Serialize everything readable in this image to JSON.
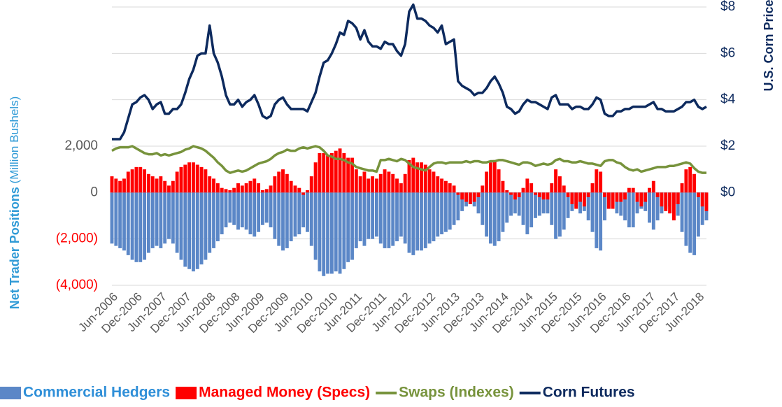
{
  "chart_data": {
    "type": "bar-line",
    "y_label": {
      "main": "Net Trader Positions",
      "sub": "(Million Bushels)"
    },
    "y2_label": "U.S. Corn Price",
    "categories": [
      "Jun-2006",
      null,
      null,
      null,
      null,
      null,
      "Dec-2006",
      null,
      null,
      null,
      null,
      null,
      "Jun-2007",
      null,
      null,
      null,
      null,
      null,
      "Dec-2007",
      null,
      null,
      null,
      null,
      null,
      "Jun-2008",
      null,
      null,
      null,
      null,
      null,
      "Dec-2008",
      null,
      null,
      null,
      null,
      null,
      "Jun-2009",
      null,
      null,
      null,
      null,
      null,
      "Dec-2009",
      null,
      null,
      null,
      null,
      null,
      "Jun-2010",
      null,
      null,
      null,
      null,
      null,
      "Dec-2010",
      null,
      null,
      null,
      null,
      null,
      "Jun-2011",
      null,
      null,
      null,
      null,
      null,
      "Dec-2011",
      null,
      null,
      null,
      null,
      null,
      "Jun-2012",
      null,
      null,
      null,
      null,
      null,
      "Dec-2012",
      null,
      null,
      null,
      null,
      null,
      "Jun-2013",
      null,
      null,
      null,
      null,
      null,
      "Dec-2013",
      null,
      null,
      null,
      null,
      null,
      "Jun-2014",
      null,
      null,
      null,
      null,
      null,
      "Dec-2014",
      null,
      null,
      null,
      null,
      null,
      "Jun-2015",
      null,
      null,
      null,
      null,
      null,
      "Dec-2015",
      null,
      null,
      null,
      null,
      null,
      "Jun-2016",
      null,
      null,
      null,
      null,
      null,
      "Dec-2016",
      null,
      null,
      null,
      null,
      null,
      "Jun-2017",
      null,
      null,
      null,
      null,
      null,
      "Dec-2017",
      null,
      null,
      null,
      null,
      null,
      "Jun-2018",
      null,
      null
    ],
    "series": [
      {
        "name": "Commercial Hedgers",
        "kind": "bar",
        "color": "#5b87c7",
        "legend_color": "#2f8fd8",
        "values": [
          -2200,
          -2300,
          -2400,
          -2500,
          -2700,
          -2900,
          -3000,
          -3000,
          -2900,
          -2600,
          -2400,
          -2300,
          -2400,
          -2200,
          -2000,
          -2200,
          -2600,
          -2900,
          -3200,
          -3300,
          -3400,
          -3300,
          -3100,
          -2900,
          -2600,
          -2400,
          -2100,
          -1800,
          -1500,
          -1300,
          -1400,
          -1600,
          -1500,
          -1600,
          -1800,
          -1900,
          -1700,
          -1400,
          -1300,
          -1500,
          -2000,
          -2300,
          -2500,
          -2400,
          -2100,
          -1900,
          -1800,
          -1500,
          -1700,
          -2300,
          -2900,
          -3400,
          -3600,
          -3500,
          -3500,
          -3400,
          -3500,
          -3300,
          -3000,
          -2900,
          -2400,
          -2100,
          -2300,
          -2000,
          -2000,
          -1900,
          -2200,
          -2400,
          -2400,
          -2300,
          -2100,
          -1900,
          -2200,
          -2600,
          -2700,
          -2500,
          -2500,
          -2400,
          -2200,
          -2100,
          -1900,
          -1800,
          -1700,
          -1600,
          -1400,
          -1200,
          -800,
          -600,
          -500,
          -600,
          -900,
          -1400,
          -1900,
          -2200,
          -2300,
          -2100,
          -1700,
          -1300,
          -1000,
          -900,
          -1000,
          -1400,
          -1800,
          -1500,
          -1100,
          -1000,
          -900,
          -900,
          -1400,
          -2000,
          -1900,
          -1600,
          -1100,
          -800,
          -600,
          -900,
          -800,
          -1200,
          -1700,
          -2400,
          -2500,
          -1200,
          -700,
          -600,
          -900,
          -1000,
          -1200,
          -1500,
          -1500,
          -900,
          -700,
          -800,
          -1300,
          -1600,
          -1200,
          -900,
          -700,
          -600,
          -500,
          -1000,
          -1700,
          -2300,
          -2600,
          -2700,
          -1900,
          -1400,
          -1200
        ]
      },
      {
        "name": "Managed Money (Specs)",
        "kind": "bar",
        "color": "#ff0000",
        "legend_color": "#ff0000",
        "values": [
          700,
          600,
          500,
          600,
          900,
          1000,
          1100,
          1100,
          1000,
          800,
          700,
          600,
          700,
          500,
          300,
          500,
          900,
          1100,
          1200,
          1300,
          1300,
          1200,
          1100,
          1000,
          700,
          600,
          400,
          200,
          150,
          100,
          200,
          400,
          300,
          400,
          500,
          600,
          400,
          100,
          150,
          300,
          700,
          900,
          1000,
          800,
          500,
          300,
          200,
          -100,
          100,
          700,
          1300,
          1700,
          1700,
          1600,
          1700,
          1800,
          1900,
          1700,
          1500,
          1500,
          1000,
          700,
          900,
          600,
          700,
          600,
          800,
          1000,
          900,
          800,
          600,
          400,
          800,
          1400,
          1500,
          1300,
          1300,
          1200,
          1000,
          900,
          700,
          600,
          500,
          400,
          300,
          -100,
          -300,
          -400,
          -500,
          -400,
          -200,
          300,
          900,
          1300,
          1400,
          1000,
          500,
          100,
          -100,
          -300,
          -200,
          200,
          600,
          400,
          -100,
          -200,
          -300,
          -300,
          400,
          1000,
          700,
          300,
          -200,
          -500,
          -700,
          -400,
          -600,
          -200,
          400,
          1000,
          900,
          -200,
          -700,
          -700,
          -400,
          -400,
          -300,
          200,
          200,
          -400,
          -600,
          -400,
          200,
          500,
          -200,
          -600,
          -800,
          -900,
          -1200,
          -500,
          400,
          1000,
          1100,
          800,
          -200,
          -600,
          -800
        ]
      },
      {
        "name": "Swaps (Indexes)",
        "kind": "line",
        "color": "#77933c",
        "legend_color": "#77933c",
        "values": [
          1800,
          1900,
          1950,
          1950,
          1950,
          2000,
          1900,
          1800,
          1700,
          1650,
          1650,
          1700,
          1600,
          1650,
          1600,
          1650,
          1700,
          1750,
          1850,
          1900,
          2000,
          1950,
          1900,
          1800,
          1650,
          1500,
          1300,
          1150,
          950,
          850,
          900,
          950,
          900,
          950,
          1050,
          1150,
          1250,
          1300,
          1350,
          1450,
          1600,
          1700,
          1750,
          1850,
          1800,
          1800,
          1900,
          1950,
          1900,
          1950,
          2000,
          1950,
          1800,
          1600,
          1550,
          1450,
          1450,
          1400,
          1300,
          1250,
          1100,
          1050,
          1000,
          950,
          950,
          900,
          1400,
          1400,
          1450,
          1400,
          1350,
          1450,
          1400,
          1250,
          1100,
          1050,
          1000,
          950,
          1100,
          1250,
          1300,
          1300,
          1250,
          1300,
          1300,
          1300,
          1300,
          1350,
          1300,
          1350,
          1350,
          1300,
          1300,
          1350,
          1350,
          1400,
          1400,
          1350,
          1300,
          1250,
          1200,
          1300,
          1300,
          1250,
          1150,
          1200,
          1250,
          1200,
          1250,
          1400,
          1450,
          1350,
          1350,
          1300,
          1300,
          1350,
          1300,
          1250,
          1250,
          1200,
          1150,
          1350,
          1400,
          1400,
          1300,
          1250,
          1100,
          1000,
          950,
          1000,
          900,
          950,
          1000,
          1050,
          1100,
          1100,
          1100,
          1150,
          1150,
          1200,
          1250,
          1300,
          1250,
          1050,
          900,
          850,
          850
        ]
      },
      {
        "name": "Corn Futures",
        "kind": "line",
        "axis": "y2",
        "color": "#0d2a5e",
        "legend_color": "#0d2a5e",
        "values": [
          2.3,
          2.3,
          2.3,
          2.6,
          3.2,
          3.8,
          3.9,
          4.1,
          4.2,
          4.0,
          3.6,
          3.8,
          3.9,
          3.4,
          3.4,
          3.6,
          3.6,
          3.8,
          4.3,
          4.9,
          5.3,
          5.9,
          6.0,
          6.0,
          7.2,
          6.0,
          5.6,
          5.0,
          4.2,
          3.8,
          3.8,
          4.0,
          3.7,
          3.9,
          4.0,
          4.2,
          3.8,
          3.3,
          3.2,
          3.3,
          3.8,
          4.0,
          4.1,
          3.8,
          3.6,
          3.6,
          3.6,
          3.6,
          3.5,
          3.9,
          4.3,
          5.0,
          5.6,
          5.7,
          6.0,
          6.4,
          6.9,
          6.8,
          7.4,
          7.3,
          7.1,
          6.6,
          7.0,
          6.5,
          6.3,
          6.3,
          6.2,
          6.5,
          6.4,
          6.4,
          6.1,
          5.9,
          6.4,
          7.8,
          8.1,
          7.5,
          7.5,
          7.4,
          7.2,
          7.1,
          6.9,
          7.2,
          6.4,
          6.5,
          6.6,
          4.8,
          4.6,
          4.5,
          4.4,
          4.2,
          4.3,
          4.3,
          4.5,
          4.8,
          5.0,
          4.7,
          4.3,
          3.7,
          3.6,
          3.4,
          3.5,
          3.8,
          4.0,
          3.9,
          3.9,
          3.8,
          3.7,
          3.6,
          4.1,
          4.2,
          3.8,
          3.8,
          3.8,
          3.6,
          3.7,
          3.7,
          3.6,
          3.6,
          3.8,
          4.1,
          4.0,
          3.4,
          3.3,
          3.3,
          3.5,
          3.5,
          3.6,
          3.6,
          3.7,
          3.7,
          3.7,
          3.7,
          3.8,
          3.9,
          3.6,
          3.6,
          3.5,
          3.5,
          3.5,
          3.6,
          3.7,
          3.9,
          3.9,
          4.0,
          3.7,
          3.6,
          3.7
        ]
      }
    ],
    "ylim": [
      -4000,
      8000
    ],
    "yticks": [
      {
        "value": 2000,
        "label": "2,000"
      },
      0,
      {
        "value": -2000,
        "label": "(2,000)"
      },
      {
        "value": -4000,
        "label": "(4,000)"
      }
    ],
    "y2lim": [
      -4,
      8
    ],
    "y2ticks": [
      {
        "value": 0,
        "label": "$0"
      },
      {
        "value": 2,
        "label": "$2"
      },
      {
        "value": 4,
        "label": "$4"
      },
      {
        "value": 6,
        "label": "$6"
      },
      {
        "value": 8,
        "label": "$8"
      }
    ],
    "grid": true
  }
}
